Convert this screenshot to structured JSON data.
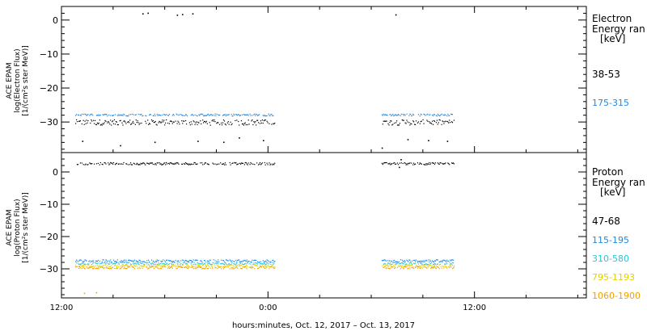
{
  "figure": {
    "xlabel": "hours:minutes, Oct. 12, 2017 – Oct. 13, 2017",
    "x_ticks": [
      {
        "label": "12:00",
        "hour": 0
      },
      {
        "label": "0:00",
        "hour": 12
      },
      {
        "label": "12:00",
        "hour": 24
      }
    ],
    "x_range_hours": [
      0,
      30.5
    ]
  },
  "chart_data": [
    {
      "type": "scatter",
      "panel": "electron",
      "ylabel_lines": [
        "ACE EPAM",
        "log(Electron Flux)",
        "[1/(cm²s ster MeV)]"
      ],
      "ylim": [
        -39,
        4
      ],
      "yticks": [
        0,
        -10,
        -20,
        -30
      ],
      "legend_title_lines": [
        "Electron",
        "Energy ran",
        "[keV]"
      ],
      "series": [
        {
          "name": "38-53",
          "color": "#000000",
          "segments": [
            [
              0.8,
              12.4
            ],
            [
              18.6,
              22.8
            ]
          ],
          "level": -30,
          "jitter": 0.8,
          "outliers": [
            {
              "x": 4.7,
              "y": 2.0
            },
            {
              "x": 5.0,
              "y": 2.2
            },
            {
              "x": 6.7,
              "y": 1.6
            },
            {
              "x": 7.0,
              "y": 1.8
            },
            {
              "x": 7.6,
              "y": 2.0
            },
            {
              "x": 19.4,
              "y": 1.7
            },
            {
              "x": 1.2,
              "y": -35.5
            },
            {
              "x": 3.4,
              "y": -36.8
            },
            {
              "x": 5.4,
              "y": -35.8
            },
            {
              "x": 7.9,
              "y": -35.5
            },
            {
              "x": 9.4,
              "y": -35.8
            },
            {
              "x": 10.3,
              "y": -34.5
            },
            {
              "x": 11.7,
              "y": -35.3
            },
            {
              "x": 18.6,
              "y": -37.5
            },
            {
              "x": 20.1,
              "y": -35.0
            },
            {
              "x": 21.3,
              "y": -35.3
            },
            {
              "x": 22.4,
              "y": -35.5
            }
          ]
        },
        {
          "name": "175-315",
          "color": "#1e88e5",
          "segments": [
            [
              0.8,
              12.4
            ],
            [
              18.6,
              22.8
            ]
          ],
          "level": -27.8,
          "jitter": 0.3,
          "outliers": []
        }
      ]
    },
    {
      "type": "scatter",
      "panel": "proton",
      "ylabel_lines": [
        "ACE EPAM",
        "log(Proton Flux)",
        "[1/(cm²s ster MeV)]"
      ],
      "ylim": [
        -39,
        6
      ],
      "yticks": [
        0,
        -10,
        -20,
        -30
      ],
      "legend_title_lines": [
        "Proton",
        "Energy ran",
        "[keV]"
      ],
      "series": [
        {
          "name": "47-68",
          "color": "#000000",
          "segments": [
            [
              0.8,
              12.4
            ],
            [
              18.6,
              22.8
            ]
          ],
          "level": 2.7,
          "jitter": 0.35,
          "outliers": [
            {
              "x": 19.7,
              "y": 4.0
            },
            {
              "x": 19.6,
              "y": 1.6
            }
          ]
        },
        {
          "name": "115-195",
          "color": "#1e88e5",
          "segments": [
            [
              0.8,
              12.4
            ],
            [
              18.6,
              22.8
            ]
          ],
          "level": -27.4,
          "jitter": 0.35,
          "outliers": []
        },
        {
          "name": "310-580",
          "color": "#26c6da",
          "segments": [
            [
              0.8,
              12.4
            ],
            [
              18.6,
              22.8
            ]
          ],
          "level": -28.2,
          "jitter": 0.35,
          "outliers": []
        },
        {
          "name": "795-1193",
          "color": "#e0d000",
          "segments": [
            [
              0.8,
              12.4
            ],
            [
              18.6,
              22.8
            ]
          ],
          "level": -28.9,
          "jitter": 0.35,
          "outliers": []
        },
        {
          "name": "1060-1900",
          "color": "#f0a000",
          "segments": [
            [
              0.8,
              12.4
            ],
            [
              18.6,
              22.8
            ]
          ],
          "level": -29.5,
          "jitter": 0.35,
          "outliers": [
            {
              "x": 1.3,
              "y": -37.4
            },
            {
              "x": 2.0,
              "y": -37.2
            }
          ]
        }
      ]
    }
  ]
}
